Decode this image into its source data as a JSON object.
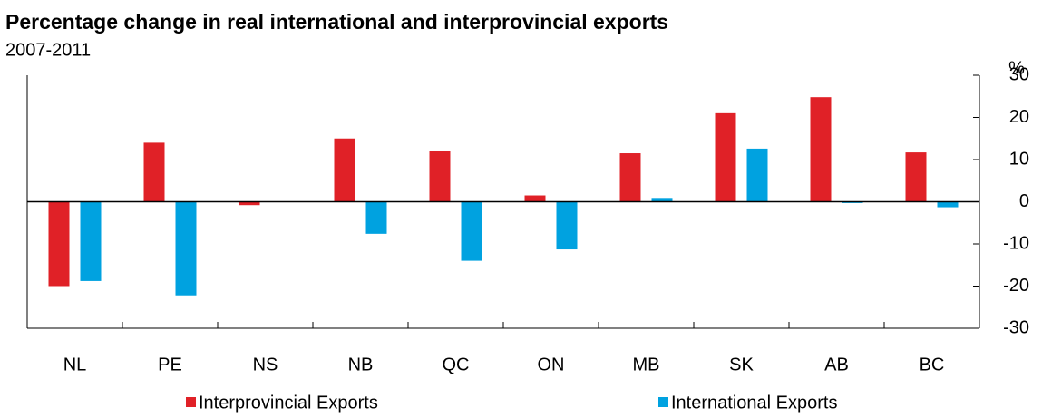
{
  "chart_data": {
    "type": "bar",
    "title": "Percentage change in real international and interprovincial exports",
    "subtitle": "2007-2011",
    "y_axis_label": "%",
    "categories": [
      "NL",
      "PE",
      "NS",
      "NB",
      "QC",
      "ON",
      "MB",
      "SK",
      "AB",
      "BC"
    ],
    "series": [
      {
        "name": "Interprovincial Exports",
        "color": "#e02127",
        "values": [
          -20,
          14,
          -0.8,
          15,
          12,
          1.5,
          11.5,
          21,
          24.8,
          11.7
        ]
      },
      {
        "name": "International Exports",
        "color": "#00a2e0",
        "values": [
          -18.8,
          -22.2,
          0,
          -7.6,
          -14,
          -11.3,
          0.9,
          12.6,
          -0.3,
          -1.3
        ]
      }
    ],
    "ylim": [
      -30,
      30
    ],
    "yticks": [
      -30,
      -20,
      -10,
      0,
      10,
      20,
      30
    ],
    "y_axis_side": "right",
    "legend": "bottom"
  }
}
